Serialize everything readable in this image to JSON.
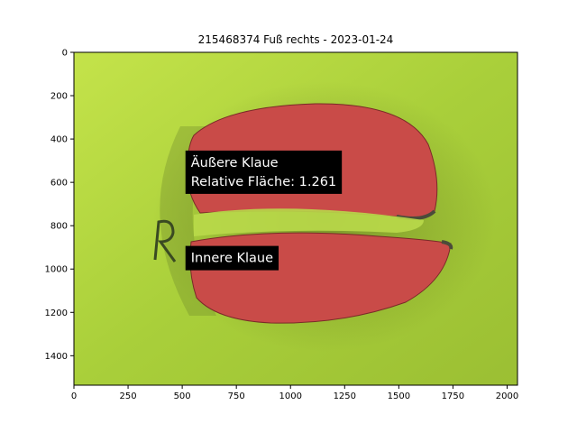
{
  "chart_data": {
    "type": "image",
    "title": "215468374 Fuß rechts - 2023-01-24",
    "xlim": [
      0,
      2048
    ],
    "ylim": [
      1536,
      0
    ],
    "x_ticks": [
      {
        "value": 0,
        "label": "0"
      },
      {
        "value": 250,
        "label": "250"
      },
      {
        "value": 500,
        "label": "500"
      },
      {
        "value": 750,
        "label": "750"
      },
      {
        "value": 1000,
        "label": "1000"
      },
      {
        "value": 1250,
        "label": "1250"
      },
      {
        "value": 1500,
        "label": "1500"
      },
      {
        "value": 1750,
        "label": "1750"
      },
      {
        "value": 2000,
        "label": "2000"
      }
    ],
    "y_ticks": [
      {
        "value": 0,
        "label": "0"
      },
      {
        "value": 200,
        "label": "200"
      },
      {
        "value": 400,
        "label": "400"
      },
      {
        "value": 600,
        "label": "600"
      },
      {
        "value": 800,
        "label": "800"
      },
      {
        "value": 1000,
        "label": "1000"
      },
      {
        "value": 1200,
        "label": "1200"
      },
      {
        "value": 1400,
        "label": "1400"
      }
    ],
    "annotations": [
      {
        "lines": [
          "Äußere Klaue",
          "Relative Fläche: 1.261"
        ],
        "x": 540,
        "y": 470
      },
      {
        "lines": [
          "Innere Klaue"
        ],
        "x": 540,
        "y": 910
      }
    ],
    "colors": {
      "background": "#b5d93f",
      "claw_fill": "#c94b48",
      "annotation_box": "#000000",
      "annotation_text": "#ffffff"
    },
    "grid": false
  }
}
